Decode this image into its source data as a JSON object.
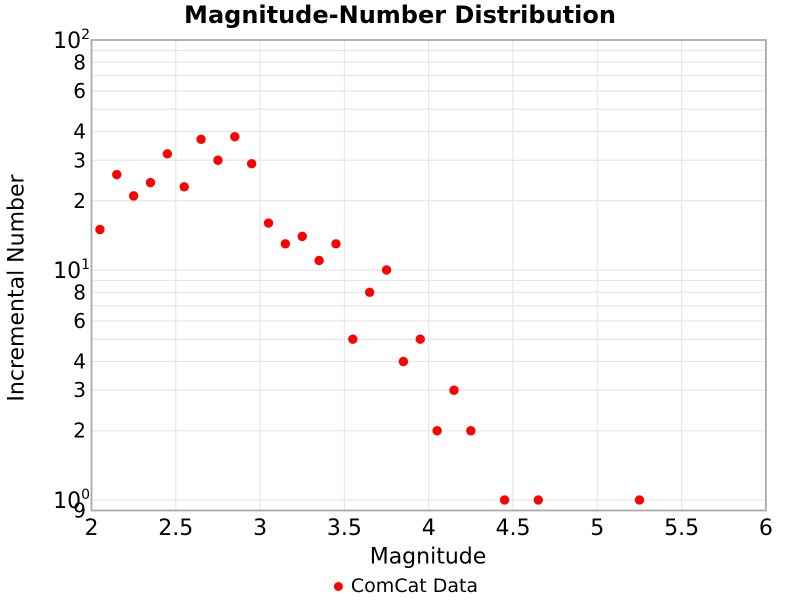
{
  "chart_data": {
    "type": "scatter",
    "title": "Magnitude-Number Distribution",
    "xlabel": "Magnitude",
    "ylabel": "Incremental Number",
    "yscale": "log",
    "xlim": [
      2,
      6
    ],
    "ylim": [
      0.9,
      100
    ],
    "grid": true,
    "legend_position": "bottom-center",
    "series": [
      {
        "name": "ComCat Data",
        "color": "#ff0000",
        "marker": "circle",
        "x": [
          2.05,
          2.15,
          2.25,
          2.35,
          2.45,
          2.55,
          2.65,
          2.75,
          2.85,
          2.95,
          3.05,
          3.15,
          3.25,
          3.35,
          3.45,
          3.55,
          3.65,
          3.75,
          3.85,
          3.95,
          4.05,
          4.15,
          4.25,
          4.45,
          4.65,
          5.25
        ],
        "y": [
          15,
          26,
          21,
          24,
          32,
          23,
          37,
          30,
          38,
          29,
          16,
          13,
          14,
          11,
          13,
          5,
          8,
          10,
          4,
          5,
          2,
          3,
          2,
          1,
          1,
          1
        ]
      }
    ],
    "legend": [
      {
        "label": "ComCat Data",
        "color": "#ff0000"
      }
    ],
    "x_ticks": [
      {
        "value": 2,
        "label": "2"
      },
      {
        "value": 2.5,
        "label": "2.5"
      },
      {
        "value": 3,
        "label": "3"
      },
      {
        "value": 3.5,
        "label": "3.5"
      },
      {
        "value": 4,
        "label": "4"
      },
      {
        "value": 4.5,
        "label": "4.5"
      },
      {
        "value": 5,
        "label": "5"
      },
      {
        "value": 5.5,
        "label": "5.5"
      },
      {
        "value": 6,
        "label": "6"
      }
    ],
    "y_major_ticks": [
      {
        "value": 100,
        "mantissa": "10",
        "exponent": "2"
      },
      {
        "value": 10,
        "mantissa": "10",
        "exponent": "1"
      },
      {
        "value": 1,
        "mantissa": "10",
        "exponent": "0"
      }
    ],
    "y_minor_tick_labels": [
      {
        "value": 80,
        "label": "8"
      },
      {
        "value": 60,
        "label": "6"
      },
      {
        "value": 40,
        "label": "4"
      },
      {
        "value": 30,
        "label": "3"
      },
      {
        "value": 20,
        "label": "2"
      },
      {
        "value": 8,
        "label": "8"
      },
      {
        "value": 6,
        "label": "6"
      },
      {
        "value": 4,
        "label": "4"
      },
      {
        "value": 3,
        "label": "3"
      },
      {
        "value": 2,
        "label": "2"
      },
      {
        "value": 0.9,
        "label": "9"
      }
    ],
    "colors": {
      "marker": "#ff0000",
      "grid": "#e7e7e7",
      "frame": "#aaaaaa",
      "text": "#000000",
      "background": "#ffffff"
    }
  }
}
